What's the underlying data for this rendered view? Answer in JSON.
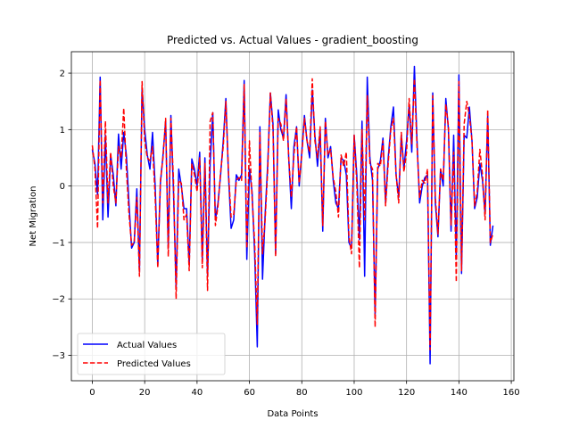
{
  "chart_data": {
    "type": "line",
    "title": "Predicted vs. Actual Values - gradient_boosting",
    "xlabel": "Data Points",
    "ylabel": "Net Migration",
    "xlim": [
      -8,
      161
    ],
    "ylim": [
      -3.45,
      2.38
    ],
    "xticks": [
      0,
      20,
      40,
      60,
      80,
      100,
      120,
      140,
      160
    ],
    "yticks": [
      -3,
      -2,
      -1,
      0,
      1,
      2
    ],
    "grid": true,
    "legend_position": "lower-left",
    "series": [
      {
        "name": "Actual Values",
        "color": "#0000ff",
        "style": "solid",
        "values": [
          0.65,
          0.4,
          -0.15,
          1.93,
          -0.6,
          0.9,
          -0.55,
          0.55,
          0.2,
          -0.35,
          0.92,
          0.3,
          0.95,
          0.55,
          -0.3,
          -1.1,
          -1.0,
          -0.05,
          -1.52,
          1.72,
          1.0,
          0.55,
          0.3,
          0.95,
          0.0,
          -1.4,
          0.05,
          0.55,
          1.15,
          -1.1,
          1.25,
          -0.1,
          -1.8,
          0.3,
          0.0,
          -0.4,
          -0.4,
          -1.4,
          0.48,
          0.3,
          0.0,
          0.6,
          -1.3,
          0.5,
          -1.6,
          0.4,
          1.3,
          -0.6,
          -0.3,
          0.2,
          0.8,
          1.55,
          0.2,
          -0.75,
          -0.6,
          0.2,
          0.1,
          0.2,
          1.87,
          -1.3,
          0.3,
          -0.1,
          -1.2,
          -2.85,
          1.05,
          -1.65,
          -0.5,
          0.4,
          1.65,
          1.1,
          -1.2,
          1.35,
          1.0,
          0.85,
          1.62,
          0.5,
          -0.4,
          0.7,
          1.05,
          0.0,
          0.6,
          1.25,
          0.8,
          0.5,
          1.7,
          0.9,
          0.35,
          1.0,
          -0.8,
          1.2,
          0.5,
          0.7,
          0.1,
          -0.3,
          -0.4,
          0.5,
          0.45,
          0.2,
          -1.0,
          -1.1,
          0.9,
          0.2,
          -0.95,
          1.15,
          -1.6,
          1.93,
          0.5,
          0.1,
          -2.3,
          0.3,
          0.45,
          0.85,
          -0.3,
          0.5,
          1.05,
          1.4,
          0.2,
          -0.2,
          0.9,
          0.3,
          0.8,
          1.45,
          0.6,
          2.12,
          0.8,
          -0.3,
          0.0,
          0.15,
          0.2,
          -3.15,
          1.65,
          -0.3,
          -0.9,
          0.3,
          0.0,
          1.55,
          1.0,
          -0.8,
          0.9,
          -1.3,
          1.97,
          -1.55,
          0.9,
          0.85,
          1.4,
          0.8,
          -0.4,
          -0.2,
          0.4,
          0.1,
          -0.5,
          1.25,
          -1.05,
          -0.7
        ]
      },
      {
        "name": "Predicted Values",
        "color": "#ff0000",
        "style": "dashed",
        "values": [
          0.72,
          0.3,
          -0.75,
          1.88,
          -0.3,
          1.15,
          -0.3,
          0.6,
          0.0,
          -0.3,
          0.7,
          0.5,
          1.38,
          0.3,
          -0.5,
          -1.05,
          -1.0,
          -0.2,
          -1.6,
          1.85,
          0.8,
          0.5,
          0.45,
          0.7,
          -0.2,
          -1.45,
          0.1,
          0.5,
          1.2,
          -1.25,
          1.2,
          0.1,
          -2.0,
          0.1,
          0.05,
          -0.6,
          -0.5,
          -1.5,
          0.4,
          0.2,
          -0.1,
          0.5,
          -1.45,
          0.4,
          -1.85,
          1.15,
          1.3,
          -0.7,
          -0.35,
          0.25,
          0.7,
          1.5,
          0.25,
          -0.55,
          -0.5,
          0.1,
          0.15,
          0.1,
          1.8,
          -1.1,
          0.8,
          -0.2,
          -1.0,
          -2.45,
          0.95,
          -1.2,
          -0.6,
          0.3,
          1.65,
          1.0,
          -1.25,
          1.2,
          1.1,
          0.8,
          1.55,
          0.5,
          -0.2,
          0.55,
          1.05,
          0.05,
          0.55,
          1.2,
          0.8,
          0.6,
          1.9,
          0.8,
          0.5,
          1.05,
          -0.7,
          1.15,
          0.55,
          0.65,
          0.15,
          -0.1,
          -0.55,
          0.55,
          0.35,
          0.6,
          -0.9,
          -1.2,
          0.9,
          0.05,
          -1.45,
          1.0,
          -0.6,
          1.6,
          0.4,
          0.3,
          -2.5,
          0.4,
          0.35,
          0.8,
          -0.35,
          0.4,
          1.0,
          1.2,
          0.2,
          -0.3,
          0.95,
          0.25,
          0.6,
          1.55,
          0.75,
          1.9,
          0.7,
          -0.2,
          0.1,
          0.05,
          0.3,
          -2.9,
          1.6,
          -0.2,
          -0.85,
          0.3,
          0.1,
          1.45,
          1.05,
          -0.7,
          0.6,
          -1.7,
          1.85,
          -1.5,
          1.1,
          1.5,
          1.25,
          0.8,
          -0.35,
          -0.1,
          0.65,
          0.2,
          -0.6,
          1.35,
          -1.0,
          -0.85
        ]
      }
    ]
  }
}
